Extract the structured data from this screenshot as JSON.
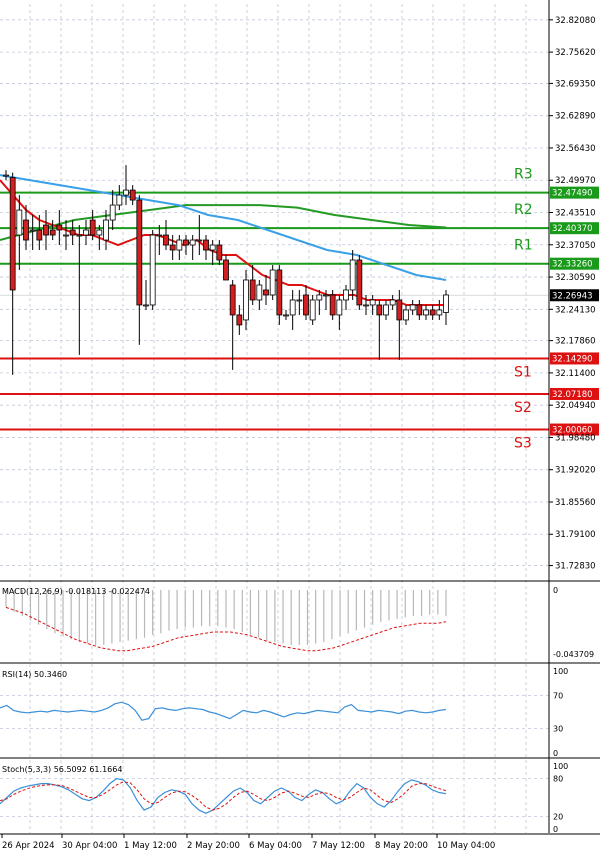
{
  "colors": {
    "bull": "#ffffff",
    "bear": "#d02020",
    "wick": "#000000",
    "resistance": "#1a9a1a",
    "support": "#dd1111",
    "ma_fast": "#e01010",
    "ma_mid": "#3aa0e8",
    "ma_slow": "#249a24",
    "price_tag": "#000000",
    "rsi": "#3a8fd8",
    "stoch_main": "#3a8fd8",
    "stoch_signal": "#dd1111",
    "macd_hist": "#b8b8b8",
    "macd_signal": "#dd1111"
  },
  "chart_data": [
    {
      "type": "candlestick",
      "ylim": [
        31.6994,
        32.8525
      ],
      "grid": true,
      "price_axis_ticks": [
        "32.82080",
        "32.75620",
        "32.69350",
        "32.62890",
        "32.56430",
        "32.49970",
        "32.43510",
        "32.37050",
        "32.30590",
        "32.24130",
        "32.17860",
        "32.11400",
        "32.04940",
        "31.98480",
        "31.92020",
        "31.85560",
        "31.79100",
        "31.72830"
      ],
      "time_labels": [
        "26 Apr 2024",
        "30 Apr 04:00",
        "1 May 12:00",
        "2 May 20:00",
        "6 May 04:00",
        "7 May 12:00",
        "8 May 20:00",
        "10 May 04:00"
      ],
      "levels": [
        {
          "name": "R3",
          "value": 32.4749,
          "label": "32.47490",
          "kind": "resistance"
        },
        {
          "name": "R2",
          "value": 32.4037,
          "label": "32.40370",
          "kind": "resistance"
        },
        {
          "name": "R1",
          "value": 32.3326,
          "label": "32.33260",
          "kind": "resistance"
        },
        {
          "name": "S1",
          "value": 32.1429,
          "label": "32.14290",
          "kind": "support"
        },
        {
          "name": "S2",
          "value": 32.0718,
          "label": "32.07180",
          "kind": "support"
        },
        {
          "name": "S3",
          "value": 32.0006,
          "label": "32.00060",
          "kind": "support"
        }
      ],
      "last_price": {
        "value": 32.26943,
        "label": "32.26943"
      },
      "candles": [
        {
          "o": 32.51,
          "h": 32.52,
          "l": 32.5,
          "c": 32.51
        },
        {
          "o": 32.505,
          "h": 32.515,
          "l": 32.11,
          "c": 32.28
        },
        {
          "o": 32.39,
          "h": 32.47,
          "l": 32.32,
          "c": 32.44
        },
        {
          "o": 32.42,
          "h": 32.45,
          "l": 32.36,
          "c": 32.38
        },
        {
          "o": 32.4,
          "h": 32.43,
          "l": 32.36,
          "c": 32.4
        },
        {
          "o": 32.4,
          "h": 32.43,
          "l": 32.36,
          "c": 32.38
        },
        {
          "o": 32.41,
          "h": 32.44,
          "l": 32.36,
          "c": 32.39
        },
        {
          "o": 32.4,
          "h": 32.42,
          "l": 32.38,
          "c": 32.39
        },
        {
          "o": 32.41,
          "h": 32.44,
          "l": 32.37,
          "c": 32.4
        },
        {
          "o": 32.39,
          "h": 32.42,
          "l": 32.36,
          "c": 32.39
        },
        {
          "o": 32.4,
          "h": 32.42,
          "l": 32.37,
          "c": 32.39
        },
        {
          "o": 32.39,
          "h": 32.41,
          "l": 32.15,
          "c": 32.39
        },
        {
          "o": 32.39,
          "h": 32.42,
          "l": 32.37,
          "c": 32.4
        },
        {
          "o": 32.42,
          "h": 32.44,
          "l": 32.38,
          "c": 32.39
        },
        {
          "o": 32.39,
          "h": 32.41,
          "l": 32.36,
          "c": 32.4
        },
        {
          "o": 32.38,
          "h": 32.44,
          "l": 32.36,
          "c": 32.42
        },
        {
          "o": 32.42,
          "h": 32.48,
          "l": 32.4,
          "c": 32.45
        },
        {
          "o": 32.45,
          "h": 32.49,
          "l": 32.44,
          "c": 32.47
        },
        {
          "o": 32.47,
          "h": 32.53,
          "l": 32.45,
          "c": 32.48
        },
        {
          "o": 32.48,
          "h": 32.49,
          "l": 32.45,
          "c": 32.46
        },
        {
          "o": 32.46,
          "h": 32.47,
          "l": 32.17,
          "c": 32.25
        },
        {
          "o": 32.25,
          "h": 32.3,
          "l": 32.24,
          "c": 32.25
        },
        {
          "o": 32.25,
          "h": 32.4,
          "l": 32.24,
          "c": 32.39
        },
        {
          "o": 32.39,
          "h": 32.41,
          "l": 32.35,
          "c": 32.39
        },
        {
          "o": 32.39,
          "h": 32.42,
          "l": 32.36,
          "c": 32.37
        },
        {
          "o": 32.37,
          "h": 32.39,
          "l": 32.34,
          "c": 32.36
        },
        {
          "o": 32.36,
          "h": 32.39,
          "l": 32.34,
          "c": 32.38
        },
        {
          "o": 32.38,
          "h": 32.39,
          "l": 32.35,
          "c": 32.37
        },
        {
          "o": 32.37,
          "h": 32.39,
          "l": 32.34,
          "c": 32.38
        },
        {
          "o": 32.38,
          "h": 32.43,
          "l": 32.35,
          "c": 32.38
        },
        {
          "o": 32.38,
          "h": 32.39,
          "l": 32.34,
          "c": 32.36
        },
        {
          "o": 32.36,
          "h": 32.38,
          "l": 32.33,
          "c": 32.37
        },
        {
          "o": 32.37,
          "h": 32.38,
          "l": 32.33,
          "c": 32.34
        },
        {
          "o": 32.34,
          "h": 32.35,
          "l": 32.3,
          "c": 32.3
        },
        {
          "o": 32.29,
          "h": 32.3,
          "l": 32.12,
          "c": 32.23
        },
        {
          "o": 32.23,
          "h": 32.25,
          "l": 32.19,
          "c": 32.21
        },
        {
          "o": 32.22,
          "h": 32.32,
          "l": 32.2,
          "c": 32.3
        },
        {
          "o": 32.3,
          "h": 32.33,
          "l": 32.25,
          "c": 32.26
        },
        {
          "o": 32.26,
          "h": 32.3,
          "l": 32.24,
          "c": 32.29
        },
        {
          "o": 32.28,
          "h": 32.31,
          "l": 32.25,
          "c": 32.27
        },
        {
          "o": 32.27,
          "h": 32.33,
          "l": 32.26,
          "c": 32.32
        },
        {
          "o": 32.32,
          "h": 32.33,
          "l": 32.21,
          "c": 32.23
        },
        {
          "o": 32.23,
          "h": 32.24,
          "l": 32.22,
          "c": 32.23
        },
        {
          "o": 32.23,
          "h": 32.28,
          "l": 32.2,
          "c": 32.26
        },
        {
          "o": 32.26,
          "h": 32.28,
          "l": 32.23,
          "c": 32.26
        },
        {
          "o": 32.27,
          "h": 32.29,
          "l": 32.22,
          "c": 32.23
        },
        {
          "o": 32.22,
          "h": 32.27,
          "l": 32.21,
          "c": 32.26
        },
        {
          "o": 32.26,
          "h": 32.28,
          "l": 32.23,
          "c": 32.27
        },
        {
          "o": 32.27,
          "h": 32.28,
          "l": 32.24,
          "c": 32.27
        },
        {
          "o": 32.27,
          "h": 32.28,
          "l": 32.22,
          "c": 32.23
        },
        {
          "o": 32.23,
          "h": 32.27,
          "l": 32.2,
          "c": 32.26
        },
        {
          "o": 32.26,
          "h": 32.29,
          "l": 32.24,
          "c": 32.28
        },
        {
          "o": 32.28,
          "h": 32.36,
          "l": 32.26,
          "c": 32.34
        },
        {
          "o": 32.34,
          "h": 32.35,
          "l": 32.24,
          "c": 32.25
        },
        {
          "o": 32.25,
          "h": 32.27,
          "l": 32.23,
          "c": 32.25
        },
        {
          "o": 32.25,
          "h": 32.27,
          "l": 32.23,
          "c": 32.26
        },
        {
          "o": 32.25,
          "h": 32.26,
          "l": 32.14,
          "c": 32.23
        },
        {
          "o": 32.23,
          "h": 32.26,
          "l": 32.22,
          "c": 32.25
        },
        {
          "o": 32.25,
          "h": 32.27,
          "l": 32.24,
          "c": 32.26
        },
        {
          "o": 32.26,
          "h": 32.28,
          "l": 32.14,
          "c": 32.22
        },
        {
          "o": 32.22,
          "h": 32.25,
          "l": 32.21,
          "c": 32.24
        },
        {
          "o": 32.24,
          "h": 32.26,
          "l": 32.23,
          "c": 32.25
        },
        {
          "o": 32.25,
          "h": 32.26,
          "l": 32.22,
          "c": 32.23
        },
        {
          "o": 32.23,
          "h": 32.25,
          "l": 32.22,
          "c": 32.24
        },
        {
          "o": 32.24,
          "h": 32.25,
          "l": 32.22,
          "c": 32.23
        },
        {
          "o": 32.23,
          "h": 32.26,
          "l": 32.22,
          "c": 32.24
        },
        {
          "o": 32.235,
          "h": 32.28,
          "l": 32.21,
          "c": 32.27
        }
      ],
      "ma_fast": [
        [
          32.5,
          32.47,
          32.44,
          32.42,
          32.41,
          32.4,
          32.39,
          32.39,
          32.38,
          32.37,
          32.38,
          32.39,
          32.39,
          32.38,
          32.37,
          32.38,
          32.36,
          32.35,
          32.35,
          32.33,
          32.31,
          32.3,
          32.29,
          32.29,
          32.28,
          32.27,
          32.27,
          32.27,
          32.26,
          32.26,
          32.26,
          32.25,
          32.25,
          32.25,
          32.25
        ]
      ],
      "ma_mid": [
        [
          32.51,
          32.5,
          32.49,
          32.48,
          32.47,
          32.46,
          32.45,
          32.43,
          32.42,
          32.4,
          32.38,
          32.36,
          32.35,
          32.33,
          32.31,
          32.3
        ]
      ],
      "ma_slow": [
        [
          32.38,
          32.4,
          32.42,
          32.43,
          32.44,
          32.45,
          32.45,
          32.45,
          32.445,
          32.43,
          32.42,
          32.41,
          32.405
        ]
      ]
    },
    {
      "type": "bar",
      "name": "MACD(12,26,9)",
      "legend": "MACD(12,26,9) -0.018113 -0.022474",
      "ticks": [
        "0",
        "-0.043709"
      ],
      "ylim": [
        -0.047,
        0.0
      ],
      "values": [
        -0.012,
        -0.015,
        -0.018,
        -0.021,
        -0.024,
        -0.027,
        -0.03,
        -0.032,
        -0.034,
        -0.036,
        -0.037,
        -0.038,
        -0.038,
        -0.037,
        -0.036,
        -0.035,
        -0.034,
        -0.033,
        -0.031,
        -0.03,
        -0.028,
        -0.027,
        -0.026,
        -0.026,
        -0.025,
        -0.025,
        -0.025,
        -0.026,
        -0.027,
        -0.029,
        -0.031,
        -0.033,
        -0.035,
        -0.036,
        -0.037,
        -0.038,
        -0.038,
        -0.038,
        -0.037,
        -0.036,
        -0.034,
        -0.032,
        -0.03,
        -0.028,
        -0.026,
        -0.024,
        -0.022,
        -0.021,
        -0.02,
        -0.019,
        -0.018,
        -0.018,
        -0.017,
        -0.017,
        -0.018
      ],
      "signal": [
        -0.012,
        -0.014,
        -0.016,
        -0.019,
        -0.022,
        -0.025,
        -0.028,
        -0.031,
        -0.034,
        -0.036,
        -0.038,
        -0.04,
        -0.041,
        -0.042,
        -0.042,
        -0.041,
        -0.04,
        -0.039,
        -0.037,
        -0.035,
        -0.033,
        -0.032,
        -0.031,
        -0.03,
        -0.029,
        -0.029,
        -0.029,
        -0.03,
        -0.031,
        -0.033,
        -0.035,
        -0.037,
        -0.039,
        -0.04,
        -0.041,
        -0.042,
        -0.042,
        -0.041,
        -0.04,
        -0.038,
        -0.036,
        -0.034,
        -0.032,
        -0.03,
        -0.028,
        -0.026,
        -0.025,
        -0.024,
        -0.023,
        -0.023,
        -0.023,
        -0.022
      ]
    },
    {
      "type": "line",
      "name": "RSI(14)",
      "legend": "RSI(14) 50.3460",
      "ticks": [
        "100",
        "70",
        "30",
        "0"
      ],
      "ylim": [
        0,
        100
      ],
      "values": [
        55,
        58,
        52,
        50,
        49,
        50,
        51,
        50,
        52,
        51,
        50,
        51,
        52,
        51,
        50,
        52,
        55,
        60,
        62,
        59,
        52,
        40,
        42,
        54,
        55,
        53,
        52,
        54,
        55,
        54,
        53,
        50,
        48,
        45,
        42,
        47,
        52,
        50,
        49,
        52,
        50,
        47,
        44,
        47,
        49,
        48,
        50,
        52,
        51,
        50,
        49,
        56,
        59,
        52,
        51,
        50,
        52,
        51,
        50,
        48,
        51,
        52,
        50,
        49,
        50,
        52,
        53
      ]
    },
    {
      "type": "line",
      "name": "Stoch(5,3,3)",
      "legend": "Stoch(5,3,3) 56.5092 61.1664",
      "ticks": [
        "100",
        "80",
        "20",
        "0"
      ],
      "ylim": [
        0,
        100
      ],
      "main": [
        40,
        50,
        60,
        65,
        68,
        70,
        72,
        72,
        70,
        67,
        62,
        55,
        48,
        45,
        50,
        60,
        72,
        80,
        78,
        65,
        45,
        30,
        35,
        50,
        58,
        62,
        60,
        55,
        40,
        30,
        25,
        30,
        40,
        50,
        60,
        65,
        58,
        45,
        40,
        50,
        60,
        65,
        60,
        50,
        45,
        55,
        62,
        58,
        48,
        40,
        45,
        60,
        72,
        65,
        50,
        40,
        35,
        45,
        60,
        72,
        78,
        75,
        70,
        62,
        58,
        56
      ],
      "signal": [
        45,
        48,
        55,
        60,
        64,
        67,
        69,
        70,
        70,
        69,
        65,
        60,
        55,
        50,
        50,
        55,
        62,
        70,
        75,
        73,
        62,
        48,
        40,
        42,
        50,
        57,
        60,
        59,
        53,
        45,
        35,
        30,
        33,
        40,
        50,
        58,
        60,
        55,
        48,
        45,
        50,
        57,
        60,
        57,
        52,
        50,
        55,
        58,
        56,
        50,
        46,
        50,
        58,
        65,
        62,
        53,
        45,
        42,
        48,
        57,
        68,
        72,
        72,
        68,
        64,
        61
      ]
    }
  ]
}
